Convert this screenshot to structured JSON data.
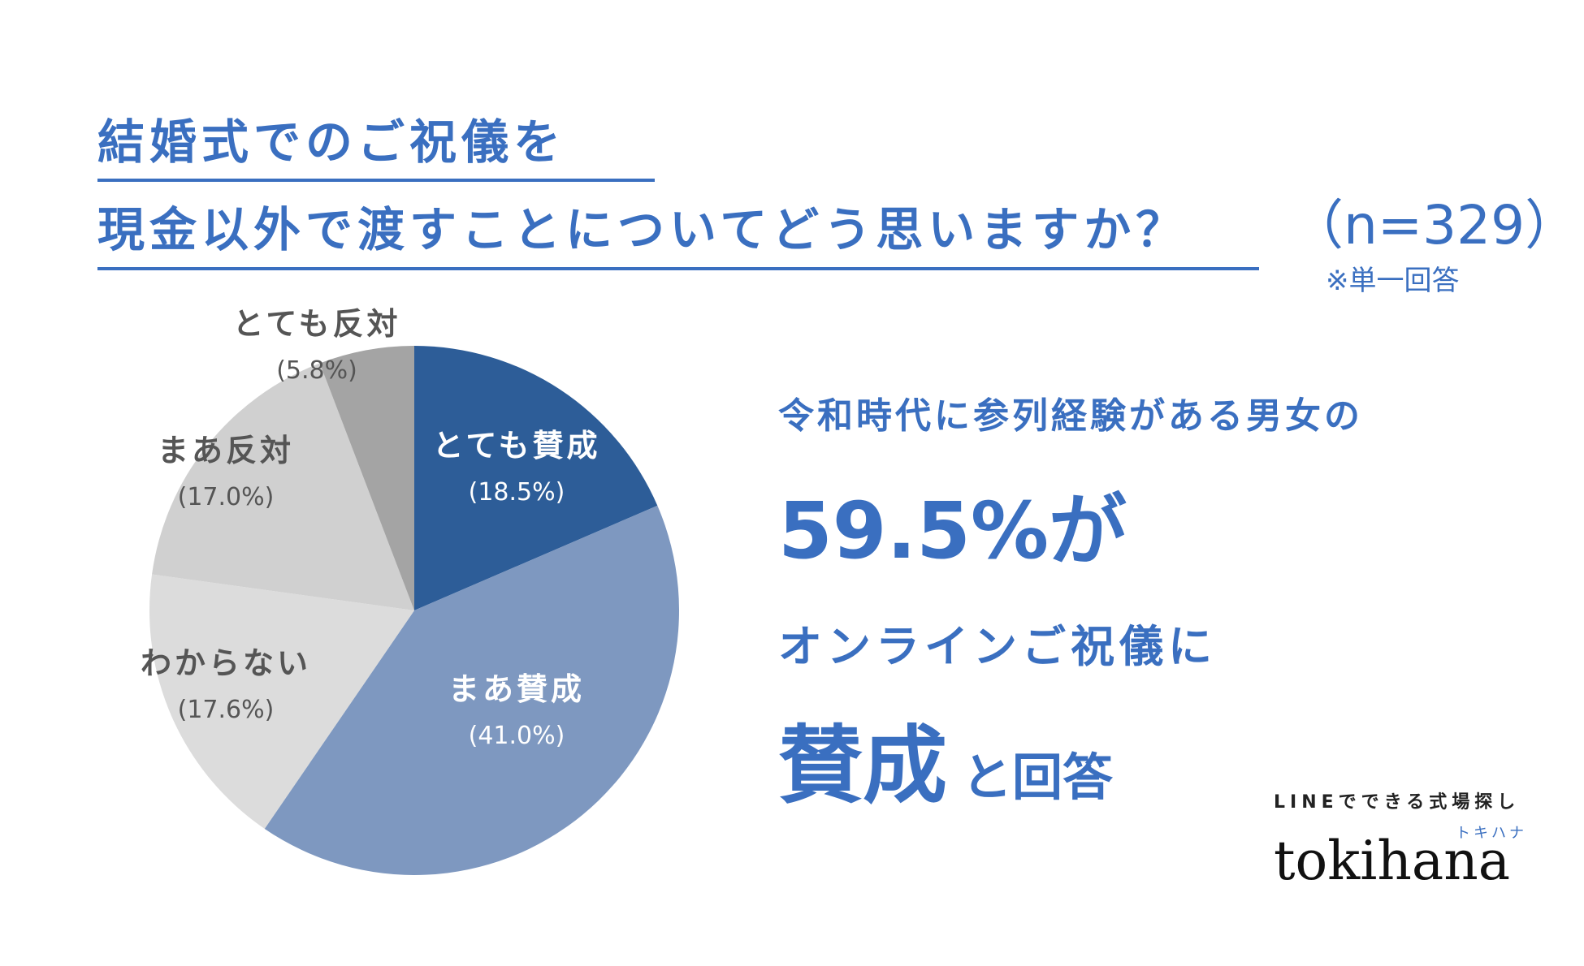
{
  "title": {
    "line1": "結婚式でのご祝儀を",
    "line2": "現金以外で渡すことについてどう思いますか？",
    "sample": "（n=329）",
    "note": "※単一回答"
  },
  "colors": {
    "accent": "#3a6fc0",
    "strongly_agree": "#2d5d98",
    "agree": "#7e98c0",
    "unknown": "#dcdcdc",
    "disagree": "#d0d0d0",
    "strongly_disagree": "#a4a4a4"
  },
  "chart_data": {
    "type": "pie",
    "categories": [
      "とても賛成",
      "まあ賛成",
      "わからない",
      "まあ反対",
      "とても反対"
    ],
    "values": [
      18.5,
      41.0,
      17.6,
      17.0,
      5.8
    ],
    "value_labels": [
      "(18.5%)",
      "(41.0%)",
      "(17.6%)",
      "(17.0%)",
      "(5.8%)"
    ],
    "colors": [
      "#2d5d98",
      "#7e98c0",
      "#dcdcdc",
      "#d0d0d0",
      "#a4a4a4"
    ],
    "label_colors": [
      "#ffffff",
      "#ffffff",
      "#555555",
      "#555555",
      "#555555"
    ],
    "label_placement": [
      "inside",
      "inside",
      "outside",
      "outside",
      "outside"
    ]
  },
  "message": {
    "line1": "令和時代に参列経験がある男女の",
    "line2": "59.5%が",
    "line3": "オンラインご祝儀に",
    "line4_big": "賛成",
    "line4_small": "と回答"
  },
  "brand": {
    "sub": "LINEでできる式場探し",
    "kana": "トキハナ",
    "logo": "tokihana"
  }
}
